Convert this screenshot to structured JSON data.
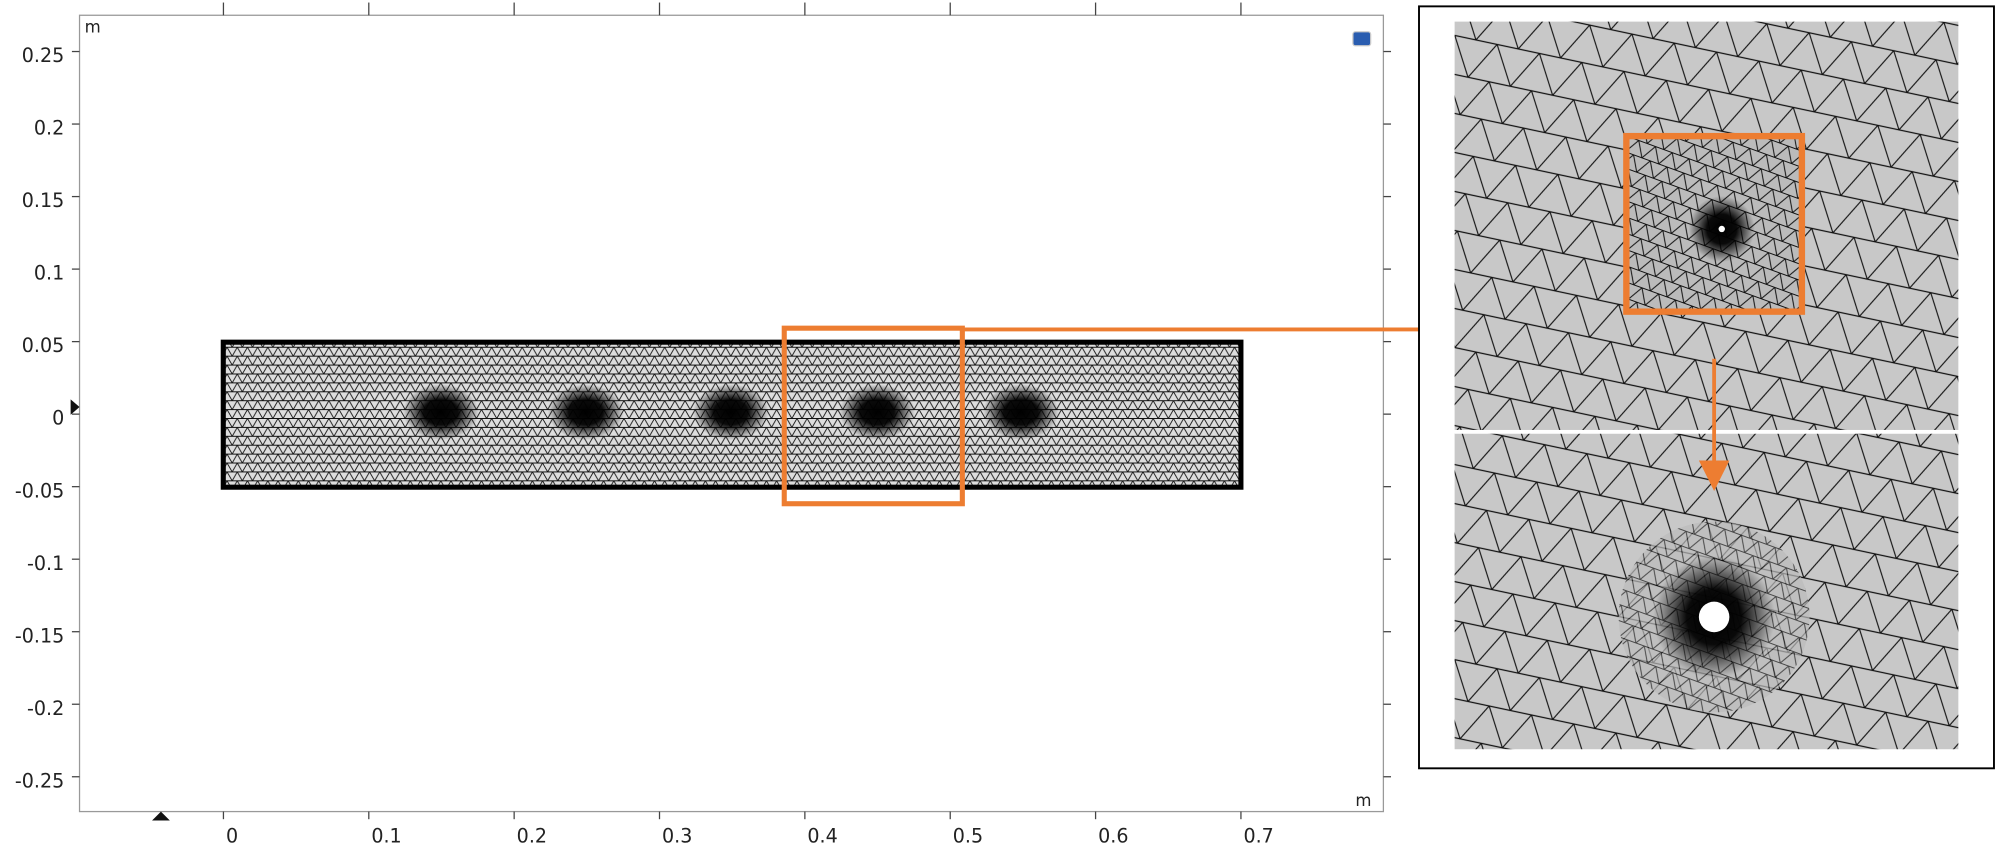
{
  "axes": {
    "x_unit": "m",
    "y_unit": "m",
    "xlim": [
      -0.099,
      0.798
    ],
    "ylim": [
      -0.274,
      0.275
    ],
    "xticks": [
      0,
      0.1,
      0.2,
      0.3,
      0.4,
      0.5,
      0.6,
      0.7
    ],
    "yticks": [
      0.25,
      0.2,
      0.15,
      0.1,
      0.05,
      0,
      -0.05,
      -0.1,
      -0.15,
      -0.2,
      -0.25
    ]
  }
}
